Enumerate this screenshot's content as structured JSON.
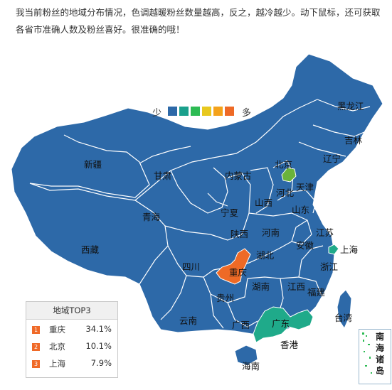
{
  "intro": "我当前粉丝的地域分布情况，色调越暖粉丝数量越高，反之，越冷越少。动下鼠标，还可获取各省市准确人数及粉丝喜好。很准确的哦！",
  "legend": {
    "low": "少",
    "high": "多",
    "colors": [
      "#2d69a8",
      "#1aa08c",
      "#2dbb53",
      "#e8c81f",
      "#f4a21b",
      "#ee6a26"
    ]
  },
  "colors": {
    "ocean": "#ffffff",
    "base": "#2d69a8",
    "border": "#ffffff",
    "teal": "#1faa8a",
    "green": "#6ab33a",
    "orange": "#ee6a26"
  },
  "provinces": {
    "heilongjiang": "黑龙江",
    "jilin": "吉林",
    "liaoning": "辽宁",
    "beijing": "北京",
    "tianjin": "天津",
    "hebei": "河北",
    "shandong": "山东",
    "shanxi": "山西",
    "neimenggu": "内蒙古",
    "xinjiang": "新疆",
    "gansu": "甘肃",
    "ningxia": "宁夏",
    "qinghai": "青海",
    "shaanxi": "陕西",
    "henan": "河南",
    "jiangsu": "江苏",
    "shanghai": "上海",
    "anhui": "安徽",
    "hubei": "湖北",
    "chongqing": "重庆",
    "sichuan": "四川",
    "xizang": "西藏",
    "zhejiang": "浙江",
    "jiangxi": "江西",
    "hunan": "湖南",
    "guizhou": "贵州",
    "yunnan": "云南",
    "guangxi": "广西",
    "guangdong": "广东",
    "fujian": "福建",
    "taiwan": "台湾",
    "hainan": "海南",
    "xianggang": "香港",
    "nanhai": "南海诸岛"
  },
  "top3": {
    "title": "地域TOP3",
    "rows": [
      {
        "rank": "1",
        "province": "重庆",
        "percent": "34.1%"
      },
      {
        "rank": "2",
        "province": "北京",
        "percent": "10.1%"
      },
      {
        "rank": "3",
        "province": "上海",
        "percent": "7.9%"
      }
    ]
  }
}
